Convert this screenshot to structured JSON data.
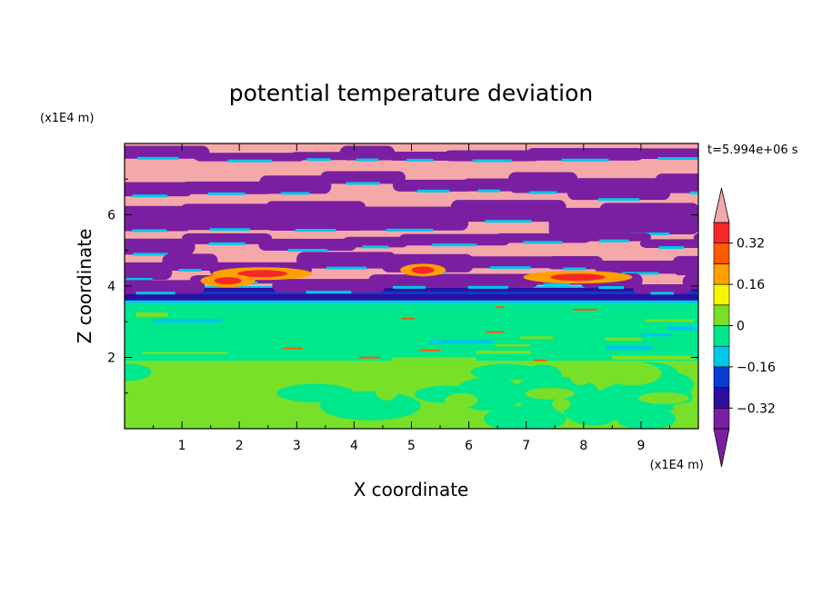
{
  "chart_data": {
    "type": "heatmap",
    "title": "potential temperature deviation",
    "xlabel": "X coordinate",
    "ylabel": "Z coordinate",
    "x_unit": "(x1E4 m)",
    "y_unit": "(x1E4 m)",
    "time_label": "t=5.994e+06 s",
    "xlim": [
      0,
      10
    ],
    "ylim": [
      0,
      8
    ],
    "x_ticks": [
      "1",
      "2",
      "3",
      "4",
      "5",
      "6",
      "7",
      "8",
      "9"
    ],
    "y_ticks": [
      "2",
      "4",
      "6"
    ],
    "colorbar": {
      "levels": [
        -0.4,
        -0.32,
        -0.24,
        -0.16,
        -0.08,
        0,
        0.08,
        0.16,
        0.24,
        0.32,
        0.4
      ],
      "labels": [
        "0.32",
        "0.16",
        "0",
        "−0.16",
        "−0.32"
      ],
      "label_values": [
        0.32,
        0.16,
        0,
        -0.16,
        -0.32
      ],
      "colors": [
        "#7a1fa2",
        "#2b0fa0",
        "#0a3cd0",
        "#00c8e8",
        "#00e88c",
        "#78e028",
        "#f5f500",
        "#ffa000",
        "#ff5a00",
        "#f52828",
        "#f4a8a8"
      ],
      "extend": "both"
    },
    "layers": [
      {
        "z": [
          0,
          1.9
        ],
        "value": -0.05,
        "note": "lower layer mixed between -0.08..0 and 0..0.08"
      },
      {
        "z": [
          1.9,
          3.5
        ],
        "value": 0.02
      },
      {
        "z": [
          3.5,
          4.0
        ],
        "value": -0.3
      },
      {
        "z": [
          4.0,
          8.0
        ],
        "value": 0.0,
        "note": "upper layer alternating below -0.4 and above 0.4"
      }
    ]
  }
}
